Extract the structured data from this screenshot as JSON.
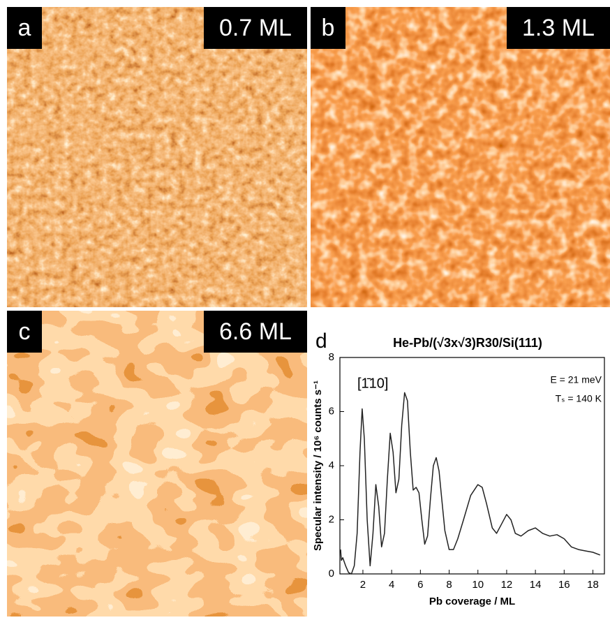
{
  "panels": [
    {
      "label": "a",
      "coverage": "0.7 ML"
    },
    {
      "label": "b",
      "coverage": "1.3 ML"
    },
    {
      "label": "c",
      "coverage": "6.6 ML"
    }
  ],
  "chart_data": {
    "type": "line",
    "label": "d",
    "title": "He-Pb/(√3x√3)R30/Si(111)",
    "x_label": "Pb coverage / ML",
    "y_label": "Specular intensity / 10⁶ counts s⁻¹",
    "annotations": [
      "[1̄10]",
      "E = 21 meV",
      "Tₛ = 140 K"
    ],
    "color": "#222222",
    "x": [
      0.45,
      0.5,
      0.6,
      0.8,
      1.0,
      1.2,
      1.4,
      1.6,
      1.8,
      1.95,
      2.1,
      2.3,
      2.5,
      2.7,
      2.9,
      3.1,
      3.3,
      3.5,
      3.7,
      3.9,
      4.1,
      4.3,
      4.5,
      4.7,
      4.9,
      5.1,
      5.3,
      5.5,
      5.7,
      5.9,
      6.1,
      6.3,
      6.5,
      6.7,
      6.9,
      7.1,
      7.3,
      7.5,
      7.7,
      8.0,
      8.3,
      8.6,
      9.0,
      9.5,
      10.0,
      10.3,
      10.6,
      11.0,
      11.3,
      11.6,
      12.0,
      12.3,
      12.6,
      13.0,
      13.5,
      14.0,
      14.5,
      15.0,
      15.5,
      16.0,
      16.5,
      17.0,
      17.5,
      18.0,
      18.5
    ],
    "values": [
      0.9,
      0.5,
      0.6,
      0.3,
      0.05,
      0.0,
      0.3,
      1.5,
      4.5,
      6.1,
      5.0,
      2.0,
      0.3,
      1.5,
      3.3,
      2.5,
      1.0,
      1.5,
      3.5,
      5.2,
      4.5,
      3.0,
      3.5,
      5.5,
      6.7,
      6.4,
      4.5,
      3.1,
      3.2,
      3.0,
      2.0,
      1.1,
      1.4,
      2.8,
      4.0,
      4.3,
      3.8,
      2.7,
      1.6,
      0.9,
      0.9,
      1.3,
      2.0,
      2.9,
      3.3,
      3.2,
      2.6,
      1.7,
      1.5,
      1.8,
      2.2,
      2.0,
      1.5,
      1.4,
      1.6,
      1.7,
      1.5,
      1.4,
      1.45,
      1.3,
      1.0,
      0.9,
      0.85,
      0.8,
      0.7
    ],
    "xlim": [
      0.4,
      18.8
    ],
    "xticks": [
      2,
      4,
      6,
      8,
      10,
      12,
      14,
      16,
      18
    ],
    "ylim": [
      0,
      8
    ],
    "yticks": [
      0,
      2,
      4,
      6,
      8
    ]
  }
}
